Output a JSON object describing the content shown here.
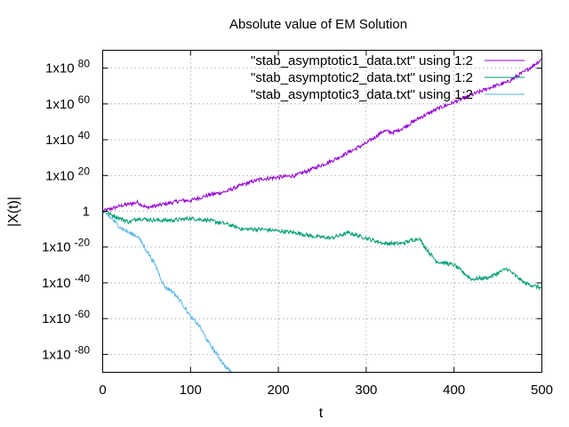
{
  "chart_data": {
    "type": "line",
    "title": "Absolute value of EM Solution",
    "xlabel": "t",
    "ylabel": "|X(t)|",
    "xlim": [
      0,
      500
    ],
    "ylim": [
      -90,
      90
    ],
    "yscale": "log",
    "grid": true,
    "legend_position": "top-right",
    "x_ticks": [
      {
        "value": 0,
        "label": "0"
      },
      {
        "value": 100,
        "label": "100"
      },
      {
        "value": 200,
        "label": "200"
      },
      {
        "value": 300,
        "label": "300"
      },
      {
        "value": 400,
        "label": "400"
      },
      {
        "value": 500,
        "label": "500"
      }
    ],
    "y_ticks": [
      {
        "exp": 80,
        "base": "1x10",
        "sup": "80",
        "label": ""
      },
      {
        "exp": 60,
        "base": "1x10",
        "sup": "60",
        "label": ""
      },
      {
        "exp": 40,
        "base": "1x10",
        "sup": "40",
        "label": ""
      },
      {
        "exp": 20,
        "base": "1x10",
        "sup": "20",
        "label": ""
      },
      {
        "exp": 0,
        "base": "",
        "sup": "",
        "label": "1"
      },
      {
        "exp": -20,
        "base": "1x10",
        "sup": "-20",
        "label": ""
      },
      {
        "exp": -40,
        "base": "1x10",
        "sup": "-40",
        "label": ""
      },
      {
        "exp": -60,
        "base": "1x10",
        "sup": "-60",
        "label": ""
      },
      {
        "exp": -80,
        "base": "1x10",
        "sup": "-80",
        "label": ""
      }
    ],
    "series": [
      {
        "name": "\"stab_asymptotic1_data.txt\" using 1:2",
        "color": "#9400d3",
        "x": [
          0,
          20,
          40,
          50,
          70,
          90,
          100,
          120,
          140,
          160,
          180,
          200,
          220,
          240,
          260,
          280,
          300,
          320,
          330,
          340,
          360,
          380,
          400,
          420,
          440,
          460,
          480,
          500
        ],
        "log10_y": [
          0,
          3,
          5,
          2,
          4,
          6,
          6,
          9,
          11,
          15,
          18,
          19,
          20,
          24,
          28,
          33,
          38,
          45,
          44,
          46,
          52,
          57,
          61,
          65,
          69,
          72,
          78,
          85
        ]
      },
      {
        "name": "\"stab_asymptotic2_data.txt\" using 1:2",
        "color": "#009e73",
        "x": [
          0,
          10,
          20,
          30,
          40,
          60,
          80,
          100,
          120,
          140,
          160,
          180,
          200,
          220,
          240,
          260,
          280,
          300,
          320,
          340,
          360,
          370,
          380,
          400,
          420,
          440,
          460,
          480,
          500
        ],
        "log10_y": [
          0,
          -2,
          -4,
          -6,
          -4,
          -5,
          -5,
          -4,
          -5,
          -7,
          -10,
          -10,
          -11,
          -12,
          -14,
          -15,
          -12,
          -15,
          -18,
          -18,
          -15,
          -22,
          -28,
          -30,
          -38,
          -37,
          -32,
          -40,
          -43
        ]
      },
      {
        "name": "\"stab_asymptotic3_data.txt\" using 1:2",
        "color": "#56b4e9",
        "x": [
          0,
          10,
          20,
          30,
          40,
          50,
          60,
          70,
          80,
          90,
          100,
          110,
          120,
          130,
          140,
          147
        ],
        "log10_y": [
          0,
          -4,
          -9,
          -12,
          -14,
          -22,
          -30,
          -42,
          -45,
          -51,
          -59,
          -64,
          -73,
          -80,
          -87,
          -90
        ]
      }
    ]
  }
}
